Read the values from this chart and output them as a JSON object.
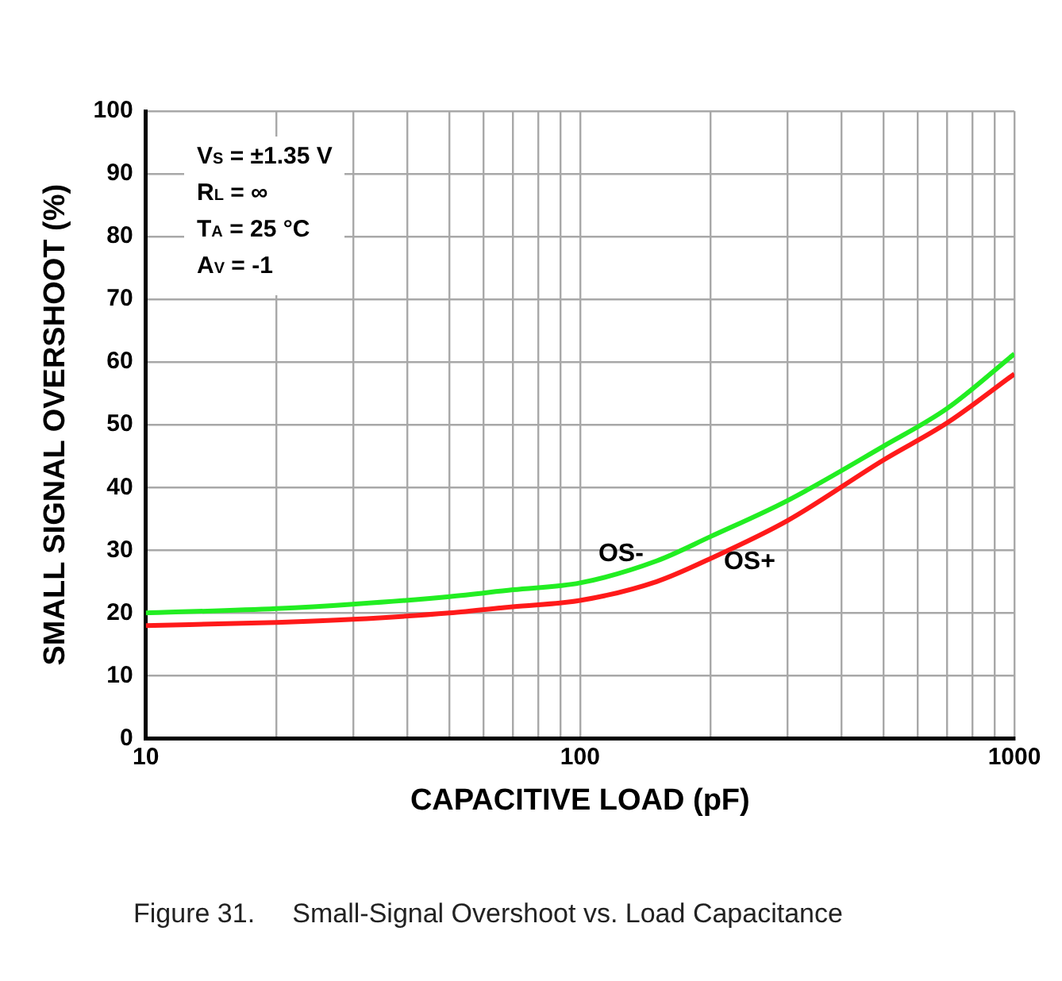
{
  "chart_data": {
    "type": "line",
    "xlabel": "CAPACITIVE LOAD (pF)",
    "ylabel": "SMALL SIGNAL OVERSHOOT (%)",
    "x": [
      10,
      20,
      30,
      50,
      70,
      100,
      150,
      200,
      300,
      500,
      700,
      1000
    ],
    "series": [
      {
        "name": "OS-",
        "color": "#22ee22",
        "values": [
          20,
          20.7,
          21.4,
          22.6,
          23.7,
          24.8,
          28.3,
          32.2,
          37.9,
          46.6,
          52.6,
          61.3
        ]
      },
      {
        "name": "OS+",
        "color": "#ff1a1a",
        "values": [
          18,
          18.5,
          19,
          20,
          21,
          22,
          25,
          28.7,
          34.7,
          44.4,
          50.3,
          58.1
        ]
      }
    ],
    "log": "x",
    "xlim": [
      10,
      1000
    ],
    "xticks": [
      10,
      {
        "value": 20,
        "label": null
      },
      {
        "value": 30,
        "label": null
      },
      {
        "value": 40,
        "label": null
      },
      {
        "value": 50,
        "label": null
      },
      {
        "value": 60,
        "label": null
      },
      {
        "value": 70,
        "label": null
      },
      {
        "value": 80,
        "label": null
      },
      {
        "value": 90,
        "label": null
      },
      100,
      {
        "value": 200,
        "label": null
      },
      {
        "value": 300,
        "label": null
      },
      {
        "value": 400,
        "label": null
      },
      {
        "value": 500,
        "label": null
      },
      {
        "value": 600,
        "label": null
      },
      {
        "value": 700,
        "label": null
      },
      {
        "value": 800,
        "label": null
      },
      {
        "value": 900,
        "label": null
      },
      1000
    ],
    "ylim": [
      0,
      100
    ],
    "yticks": [
      0,
      10,
      20,
      30,
      40,
      50,
      60,
      70,
      80,
      90,
      100
    ],
    "grid": true,
    "legend": false,
    "marker": "none",
    "line_style": "solid",
    "annotations": [
      "V$_{S}$ = ±1.35 V",
      "R$_{L}$ = ∞",
      "T$_{A}$ = 25 °C",
      "A$_{V}$ = -1",
      "Figure 31.     Small-Signal Overshoot vs. Load Capacitance"
    ]
  }
}
